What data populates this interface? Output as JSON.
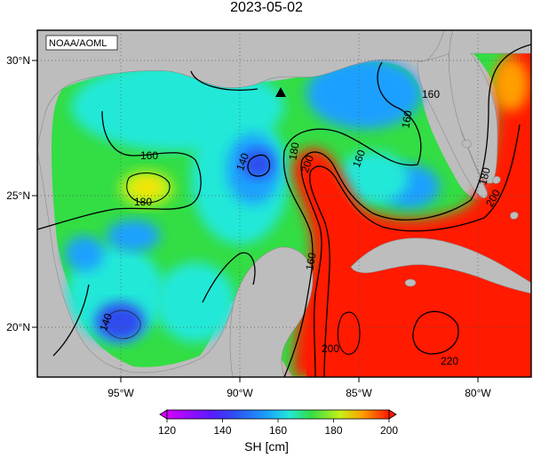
{
  "header": {
    "title": "2023-05-02"
  },
  "map": {
    "credit": "NOAA/AOML",
    "lon_labels": [
      "95°W",
      "90°W",
      "85°W",
      "80°W"
    ],
    "lon_values": [
      -95,
      -90,
      -85,
      -80
    ],
    "lat_labels": [
      "30°N",
      "25°N",
      "20°N"
    ],
    "lat_values": [
      30,
      25,
      20
    ],
    "contour_labels": [
      "160",
      "140",
      "180",
      "160",
      "180",
      "200",
      "160",
      "160",
      "180",
      "200",
      "160",
      "140",
      "200",
      "220"
    ],
    "marker": {
      "type": "triangle",
      "lon": -88.4,
      "lat": 28.6
    },
    "colors": {
      "land": "#bdbdbd",
      "c140": "#2f4cf0",
      "c150": "#1aa0ff",
      "c160": "#22e8d8",
      "c170": "#33dd44",
      "c180": "#c8f019",
      "c190": "#ff9f00",
      "c200": "#ff1a00"
    }
  },
  "colorbar": {
    "ticks": [
      "120",
      "140",
      "160",
      "180",
      "200"
    ],
    "unit": "SH [cm]",
    "min": 120,
    "max": 200
  }
}
